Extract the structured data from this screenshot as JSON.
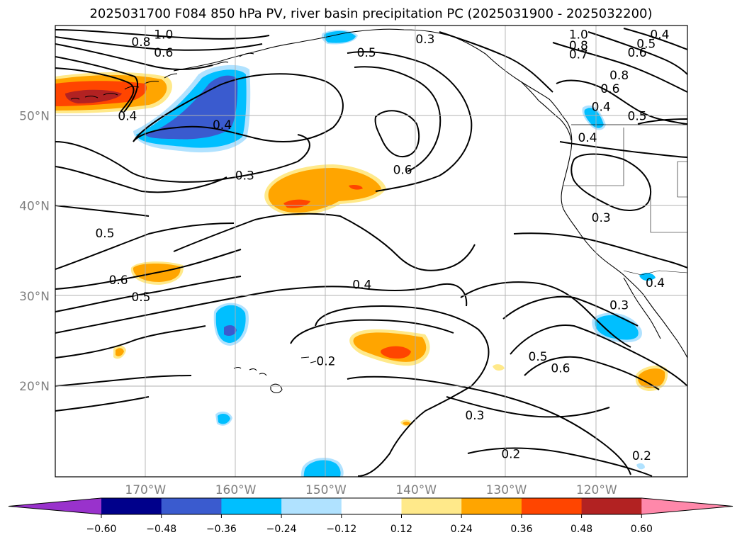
{
  "title": "2025031700 F084 850 hPa PV, river basin precipitation PC (2025031900 - 2025032200)",
  "lat_labels": [
    {
      "id": "50n",
      "text": "50°N",
      "lat": 50
    },
    {
      "id": "40n",
      "text": "40°N",
      "lat": 40
    },
    {
      "id": "30n",
      "text": "30°N",
      "lat": 30
    },
    {
      "id": "20n",
      "text": "20°N",
      "lat": 20
    }
  ],
  "lon_labels": [
    {
      "id": "170w",
      "text": "170°W",
      "lon": -170
    },
    {
      "id": "160w",
      "text": "160°W",
      "lon": -160
    },
    {
      "id": "150w",
      "text": "150°W",
      "lon": -150
    },
    {
      "id": "140w",
      "text": "140°W",
      "lon": -140
    },
    {
      "id": "130w",
      "text": "130°W",
      "lon": -130
    },
    {
      "id": "120w",
      "text": "120°W",
      "lon": -120
    }
  ],
  "contour_labels": [
    {
      "text": "1.0",
      "lon": -168,
      "lat": 59
    },
    {
      "text": "0.8",
      "lon": -170.5,
      "lat": 58.2
    },
    {
      "text": "0.6",
      "lon": -168,
      "lat": 57
    },
    {
      "text": "0.4",
      "lon": -172,
      "lat": 50
    },
    {
      "text": "0.4",
      "lon": -161.5,
      "lat": 49
    },
    {
      "text": "0.3",
      "lon": -159,
      "lat": 43.4
    },
    {
      "text": "0.5",
      "lon": -145.5,
      "lat": 57
    },
    {
      "text": "0.3",
      "lon": -139,
      "lat": 58.5
    },
    {
      "text": "0.6",
      "lon": -141.5,
      "lat": 44
    },
    {
      "text": "1.0",
      "lon": -122,
      "lat": 59
    },
    {
      "text": "0.8",
      "lon": -122,
      "lat": 57.8
    },
    {
      "text": "0.7",
      "lon": -122,
      "lat": 56.8
    },
    {
      "text": "0.6",
      "lon": -115.5,
      "lat": 57
    },
    {
      "text": "0.5",
      "lon": -114.5,
      "lat": 58
    },
    {
      "text": "0.4",
      "lon": -113,
      "lat": 59
    },
    {
      "text": "0.8",
      "lon": -117.5,
      "lat": 54.5
    },
    {
      "text": "0.6",
      "lon": -118.5,
      "lat": 53
    },
    {
      "text": "0.4",
      "lon": -119.5,
      "lat": 51
    },
    {
      "text": "0.5",
      "lon": -115.5,
      "lat": 50
    },
    {
      "text": "0.4",
      "lon": -121,
      "lat": 47.6
    },
    {
      "text": "0.3",
      "lon": -119.5,
      "lat": 38.7
    },
    {
      "text": "0.5",
      "lon": -174.5,
      "lat": 37
    },
    {
      "text": "0.6",
      "lon": -173,
      "lat": 31.8
    },
    {
      "text": "0.5",
      "lon": -170.5,
      "lat": 29.9
    },
    {
      "text": "0.4",
      "lon": -146,
      "lat": 31.3
    },
    {
      "text": "0.2",
      "lon": -150,
      "lat": 22.8
    },
    {
      "text": "0.3",
      "lon": -133.5,
      "lat": 16.8
    },
    {
      "text": "0.5",
      "lon": -126.5,
      "lat": 23.3
    },
    {
      "text": "0.6",
      "lon": -124,
      "lat": 22
    },
    {
      "text": "0.2",
      "lon": -129.5,
      "lat": 12.5
    },
    {
      "text": "0.3",
      "lon": -117.5,
      "lat": 29
    },
    {
      "text": "0.2",
      "lon": -115,
      "lat": 12.3
    },
    {
      "text": "0.4",
      "lon": -113.5,
      "lat": 31.5
    }
  ],
  "colorbar": {
    "ticks": [
      "−0.60",
      "−0.48",
      "−0.36",
      "−0.24",
      "−0.12",
      "0.12",
      "0.24",
      "0.36",
      "0.48",
      "0.60"
    ],
    "colors": [
      "#9932cc",
      "#00008b",
      "#3a5bcf",
      "#00bfff",
      "#b0e2ff",
      "#ffffff",
      "#ffe98a",
      "#ffa500",
      "#ff4500",
      "#b22222",
      "#ff88aa"
    ]
  }
}
